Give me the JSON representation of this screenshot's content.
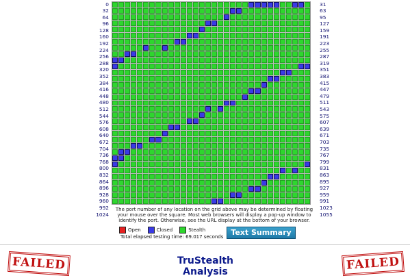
{
  "grid": {
    "columns": 32,
    "left_labels": [
      "0",
      "32",
      "64",
      "96",
      "128",
      "160",
      "192",
      "224",
      "256",
      "288",
      "320",
      "352",
      "384",
      "416",
      "448",
      "480",
      "512",
      "544",
      "576",
      "608",
      "640",
      "672",
      "704",
      "736",
      "768",
      "800",
      "832",
      "864",
      "896",
      "928",
      "960",
      "992",
      "1024"
    ],
    "right_labels": [
      "31",
      "63",
      "95",
      "127",
      "159",
      "191",
      "223",
      "255",
      "287",
      "319",
      "351",
      "383",
      "415",
      "447",
      "479",
      "511",
      "543",
      "575",
      "607",
      "639",
      "671",
      "703",
      "735",
      "767",
      "799",
      "831",
      "863",
      "895",
      "927",
      "959",
      "991",
      "1023",
      "1055"
    ],
    "closed_cells": [
      [
        0,
        22
      ],
      [
        0,
        23
      ],
      [
        0,
        24
      ],
      [
        0,
        25
      ],
      [
        0,
        26
      ],
      [
        0,
        29
      ],
      [
        0,
        30
      ],
      [
        1,
        19
      ],
      [
        1,
        20
      ],
      [
        2,
        18
      ],
      [
        3,
        15
      ],
      [
        3,
        16
      ],
      [
        4,
        14
      ],
      [
        5,
        12
      ],
      [
        5,
        13
      ],
      [
        6,
        10
      ],
      [
        6,
        11
      ],
      [
        7,
        5
      ],
      [
        7,
        8
      ],
      [
        8,
        2
      ],
      [
        8,
        3
      ],
      [
        9,
        1
      ],
      [
        9,
        0
      ],
      [
        10,
        0
      ],
      [
        10,
        30
      ],
      [
        10,
        31
      ],
      [
        11,
        28
      ],
      [
        11,
        27
      ],
      [
        12,
        26
      ],
      [
        12,
        25
      ],
      [
        13,
        24
      ],
      [
        14,
        22
      ],
      [
        14,
        23
      ],
      [
        15,
        21
      ],
      [
        16,
        18
      ],
      [
        16,
        19
      ],
      [
        17,
        15
      ],
      [
        17,
        17
      ],
      [
        18,
        14
      ],
      [
        19,
        13
      ],
      [
        19,
        12
      ],
      [
        20,
        10
      ],
      [
        20,
        9
      ],
      [
        21,
        8
      ],
      [
        22,
        7
      ],
      [
        22,
        6
      ],
      [
        23,
        4
      ],
      [
        23,
        3
      ],
      [
        24,
        2
      ],
      [
        24,
        1
      ],
      [
        25,
        1
      ],
      [
        25,
        0
      ],
      [
        26,
        0
      ],
      [
        26,
        31
      ],
      [
        27,
        29
      ],
      [
        27,
        27
      ],
      [
        28,
        26
      ],
      [
        28,
        25
      ],
      [
        29,
        24
      ],
      [
        30,
        23
      ],
      [
        30,
        22
      ],
      [
        31,
        20
      ],
      [
        31,
        19
      ],
      [
        32,
        17
      ],
      [
        32,
        16
      ]
    ]
  },
  "note": "The port number of any location on the grid above may be determined by floating your mouse over the square. Most web browsers will display a pop-up window to identify the port. Otherwise, see the URL display at the bottom of your browser.",
  "legend": {
    "open": "Open",
    "closed": "Closed",
    "stealth": "Stealth",
    "colors": {
      "open": "#e62020",
      "closed": "#3a3ae6",
      "stealth": "#2ed62e"
    }
  },
  "elapsed": "Total elapsed testing time: 69.017 seconds",
  "text_summary_label": "Text Summary",
  "title_line1": "TruStealth",
  "title_line2": "Analysis",
  "stamp_text": "FAILED"
}
